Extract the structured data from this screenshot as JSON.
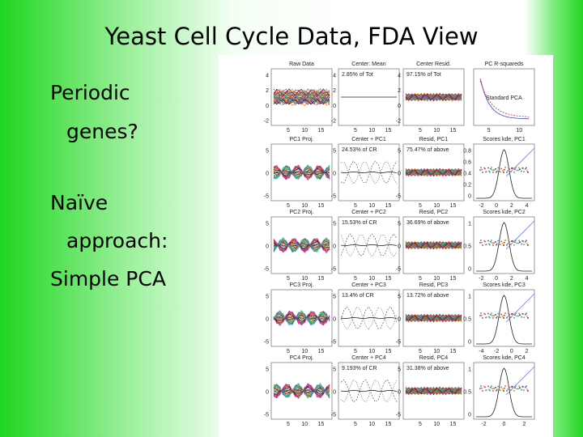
{
  "title": "Yeast Cell Cycle Data, FDA View",
  "bullets": [
    {
      "lines": [
        "Periodic",
        "genes?"
      ]
    },
    {
      "lines": [
        "Naïve",
        "approach:"
      ]
    },
    {
      "lines": [
        "Simple PCA"
      ]
    }
  ],
  "figure": {
    "xticks": [
      5,
      10,
      15
    ],
    "rows": [
      {
        "yticks": [
          4,
          2,
          0,
          -2
        ],
        "kde_yticks": [],
        "kde_xticks": [
          5,
          10
        ],
        "panels": [
          {
            "title": "Raw Data"
          },
          {
            "title": "Center: Mean",
            "note": "2.85% of Tot"
          },
          {
            "title": "Center Resid.",
            "note": "97.15% of Tot"
          },
          {
            "title": "PC R-squareds",
            "note": "Standard PCA"
          }
        ]
      },
      {
        "yticks": [
          5,
          0,
          -5
        ],
        "kde_yticks": [
          0.8,
          0.6,
          0.4,
          0.2,
          0
        ],
        "kde_xticks": [
          -2,
          0,
          2,
          4
        ],
        "panels": [
          {
            "title": "PC1 Proj."
          },
          {
            "title": "Center + PC1",
            "note": "24.53% of CR"
          },
          {
            "title": "Resid, PC1",
            "note": "75.47% of above"
          },
          {
            "title": "Scores kde, PC1"
          }
        ]
      },
      {
        "yticks": [
          5,
          0,
          -5
        ],
        "kde_yticks": [
          1,
          0.5,
          0
        ],
        "kde_xticks": [
          -2,
          0,
          2,
          4
        ],
        "panels": [
          {
            "title": "PC2 Proj."
          },
          {
            "title": "Center + PC2",
            "note": "15.53% of CR"
          },
          {
            "title": "Resid, PC2",
            "note": "36.69% of above"
          },
          {
            "title": "Scores kde, PC2"
          }
        ]
      },
      {
        "yticks": [
          5,
          0,
          -5
        ],
        "kde_yticks": [
          1,
          0.5,
          0
        ],
        "kde_xticks": [
          -4,
          -2,
          0,
          2
        ],
        "panels": [
          {
            "title": "PC3 Proj."
          },
          {
            "title": "Center + PC3",
            "note": "13.4% of CR"
          },
          {
            "title": "Resid, PC3",
            "note": "13.72% of above"
          },
          {
            "title": "Scores kde, PC3"
          }
        ]
      },
      {
        "yticks": [
          5,
          0,
          -5
        ],
        "kde_yticks": [
          1,
          0.5,
          0
        ],
        "kde_xticks": [
          -2,
          0,
          2
        ],
        "panels": [
          {
            "title": "PC4 Proj."
          },
          {
            "title": "Center + PC4",
            "note": "9.193% of CR"
          },
          {
            "title": "Resid, PC4",
            "note": "31.38% of above"
          },
          {
            "title": "Scores kde, PC4"
          }
        ]
      }
    ]
  }
}
